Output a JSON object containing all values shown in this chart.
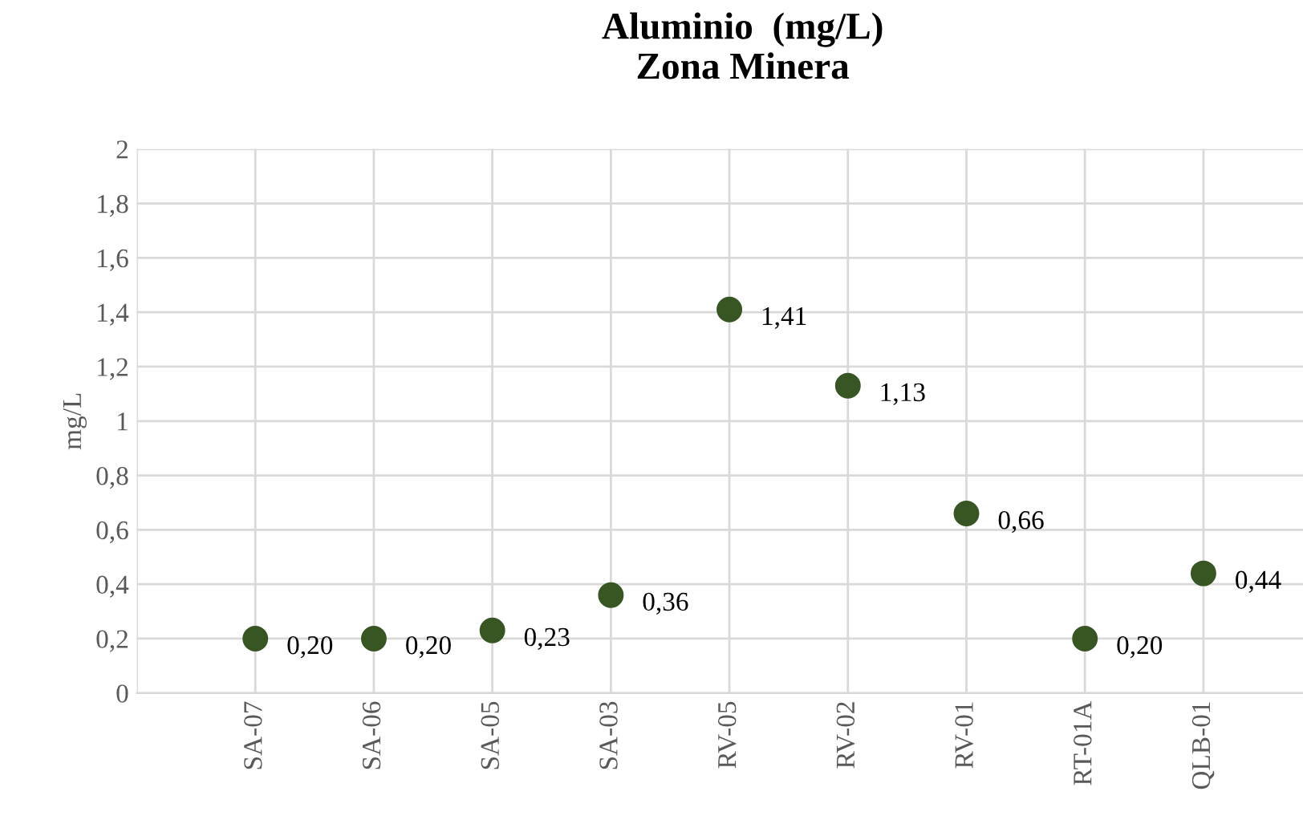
{
  "chart_data": {
    "type": "scatter",
    "title": "Aluminio  (mg/L)\nZona Minera",
    "ylabel": "mg/L",
    "categories": [
      null,
      "SA-07",
      "SA-06",
      "SA-05",
      "SA-03",
      "RV-05",
      "RV-02",
      "RV-01",
      "RT-01A",
      "QLB-01"
    ],
    "series": [
      {
        "color": "#375623",
        "values": [
          null,
          0.2,
          0.2,
          0.23,
          0.36,
          1.41,
          1.13,
          0.66,
          0.2,
          0.44
        ],
        "value_labels": [
          null,
          "0,20",
          "0,20",
          "0,23",
          "0,36",
          "1,41",
          "1,13",
          "0,66",
          "0,20",
          "0,44"
        ]
      }
    ],
    "ylim": [
      0,
      2
    ],
    "yticks": [
      0,
      {
        "value": 0.2,
        "label": "0,2"
      },
      {
        "value": 0.4,
        "label": "0,4"
      },
      {
        "value": 0.6,
        "label": "0,6"
      },
      {
        "value": 0.8,
        "label": "0,8"
      },
      1,
      {
        "value": 1.2,
        "label": "1,2"
      },
      {
        "value": 1.4,
        "label": "1,4"
      },
      {
        "value": 1.6,
        "label": "1,6"
      },
      {
        "value": 1.8,
        "label": "1,8"
      },
      2
    ],
    "grid": true,
    "marker": "circle",
    "legend": false
  }
}
